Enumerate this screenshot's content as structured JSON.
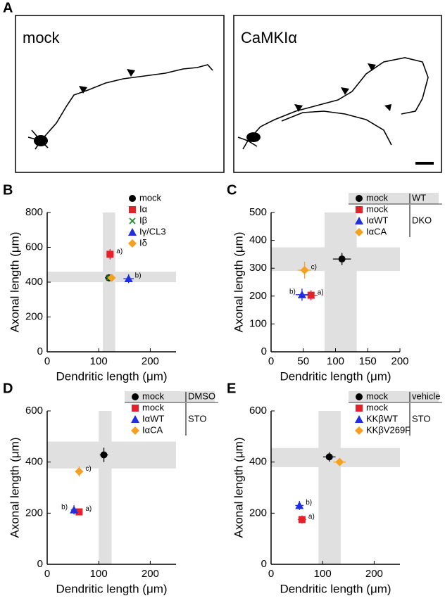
{
  "panel_a": {
    "label": "A",
    "images": [
      {
        "title": "mock"
      },
      {
        "title": "CaMKIα"
      }
    ]
  },
  "chart_data": [
    {
      "type": "scatter",
      "panel": "B",
      "xlabel": "Dendritic length (μm)",
      "ylabel": "Axonal length (μm)",
      "xlim": [
        0,
        250
      ],
      "xticks": [
        0,
        100,
        200
      ],
      "ylim": [
        0,
        800
      ],
      "yticks": [
        0,
        200,
        400,
        600,
        800
      ],
      "band": {
        "x": [
          108,
          132
        ],
        "y": [
          400,
          460
        ]
      },
      "groups": [
        {
          "series": [
            {
              "name": "mock",
              "color": "#000000",
              "marker": "circle",
              "x": [
                120
              ],
              "values": [
                425
              ],
              "x_error": [
                8
              ],
              "error": [
                15
              ]
            },
            {
              "name": "Iα",
              "color": "#e8202a",
              "marker": "square",
              "x": [
                122
              ],
              "values": [
                560
              ],
              "x_error": [
                7
              ],
              "error": [
                30
              ],
              "annotation": "a)"
            },
            {
              "name": "Iβ",
              "color": "#1a8a2a",
              "marker": "cross",
              "x": [
                120
              ],
              "values": [
                425
              ],
              "x_error": [
                6
              ],
              "error": [
                15
              ]
            },
            {
              "name": "Iγ/CL3",
              "color": "#1f2ee0",
              "marker": "triangle",
              "x": [
                158
              ],
              "values": [
                420
              ],
              "x_error": [
                10
              ],
              "error": [
                25
              ],
              "annotation": "b)"
            },
            {
              "name": "Iδ",
              "color": "#f5a01e",
              "marker": "diamond",
              "x": [
                125
              ],
              "values": [
                425
              ],
              "x_error": [
                7
              ],
              "error": [
                15
              ]
            }
          ]
        }
      ]
    },
    {
      "type": "scatter",
      "panel": "C",
      "xlabel": "Dendritic length (μm)",
      "ylabel": "Axonal length (μm)",
      "xlim": [
        0,
        200
      ],
      "xticks": [
        0,
        50,
        100,
        150,
        200
      ],
      "ylim": [
        0,
        500
      ],
      "yticks": [
        0,
        100,
        200,
        300,
        400,
        500
      ],
      "band": {
        "x": [
          83,
          133
        ],
        "y": [
          290,
          375
        ]
      },
      "groups": [
        {
          "label": "WT",
          "series": [
            {
              "name": "mock",
              "color": "#000000",
              "marker": "circle",
              "x": [
                110
              ],
              "values": [
                333
              ],
              "x_error": [
                14
              ],
              "error": [
                22
              ]
            }
          ]
        },
        {
          "label": "DKO",
          "series": [
            {
              "name": "mock",
              "color": "#e8202a",
              "marker": "square",
              "x": [
                62
              ],
              "values": [
                203
              ],
              "x_error": [
                10
              ],
              "error": [
                18
              ],
              "annotation": "a)"
            },
            {
              "name": "IαWT",
              "color": "#1f2ee0",
              "marker": "triangle",
              "x": [
                48
              ],
              "values": [
                205
              ],
              "x_error": [
                10
              ],
              "error": [
                22
              ],
              "annotation": "b)"
            },
            {
              "name": "IαCA",
              "color": "#f5a01e",
              "marker": "diamond",
              "x": [
                52
              ],
              "values": [
                293
              ],
              "x_error": [
                10
              ],
              "error": [
                30
              ],
              "annotation": "c)"
            }
          ]
        }
      ]
    },
    {
      "type": "scatter",
      "panel": "D",
      "xlabel": "Dendritic length (μm)",
      "ylabel": "Axonal length (μm)",
      "xlim": [
        0,
        250
      ],
      "xticks": [
        0,
        100,
        200
      ],
      "ylim": [
        0,
        600
      ],
      "yticks": [
        0,
        200,
        400,
        600
      ],
      "band": {
        "x": [
          100,
          125
        ],
        "y": [
          375,
          480
        ]
      },
      "groups": [
        {
          "label": "DMSO",
          "series": [
            {
              "name": "mock",
              "color": "#000000",
              "marker": "circle",
              "x": [
                110
              ],
              "values": [
                428
              ],
              "x_error": [
                8
              ],
              "error": [
                28
              ]
            }
          ]
        },
        {
          "label": "STO",
          "series": [
            {
              "name": "mock",
              "color": "#e8202a",
              "marker": "square",
              "x": [
                62
              ],
              "values": [
                205
              ],
              "x_error": [
                6
              ],
              "error": [
                12
              ],
              "annotation": "a)"
            },
            {
              "name": "IαWT",
              "color": "#1f2ee0",
              "marker": "triangle",
              "x": [
                52
              ],
              "values": [
                213
              ],
              "x_error": [
                6
              ],
              "error": [
                18
              ],
              "annotation": "b)"
            },
            {
              "name": "IαCA",
              "color": "#f5a01e",
              "marker": "diamond",
              "x": [
                62
              ],
              "values": [
                363
              ],
              "x_error": [
                8
              ],
              "error": [
                20
              ],
              "annotation": "c)"
            }
          ]
        }
      ]
    },
    {
      "type": "scatter",
      "panel": "E",
      "xlabel": "Dendritic length (μm)",
      "ylabel": "Axonal length (μm)",
      "xlim": [
        0,
        250
      ],
      "xticks": [
        0,
        100,
        200
      ],
      "ylim": [
        0,
        600
      ],
      "yticks": [
        0,
        200,
        400,
        600
      ],
      "band": {
        "x": [
          92,
          135
        ],
        "y": [
          380,
          455
        ]
      },
      "groups": [
        {
          "label": "vehicle",
          "series": [
            {
              "name": "mock",
              "color": "#000000",
              "marker": "circle",
              "x": [
                113
              ],
              "values": [
                420
              ],
              "x_error": [
                12
              ],
              "error": [
                18
              ]
            }
          ]
        },
        {
          "label": "STO",
          "series": [
            {
              "name": "mock",
              "color": "#e8202a",
              "marker": "square",
              "x": [
                60
              ],
              "values": [
                175
              ],
              "x_error": [
                8
              ],
              "error": [
                16
              ],
              "annotation": "a)"
            },
            {
              "name": "KKβWT",
              "color": "#1f2ee0",
              "marker": "triangle",
              "x": [
                55
              ],
              "values": [
                230
              ],
              "x_error": [
                8
              ],
              "error": [
                18
              ],
              "annotation": "b)"
            },
            {
              "name": "KKβV269F",
              "color": "#f5a01e",
              "marker": "diamond",
              "x": [
                133
              ],
              "values": [
                400
              ],
              "x_error": [
                12
              ],
              "error": [
                16
              ]
            }
          ]
        }
      ]
    }
  ]
}
